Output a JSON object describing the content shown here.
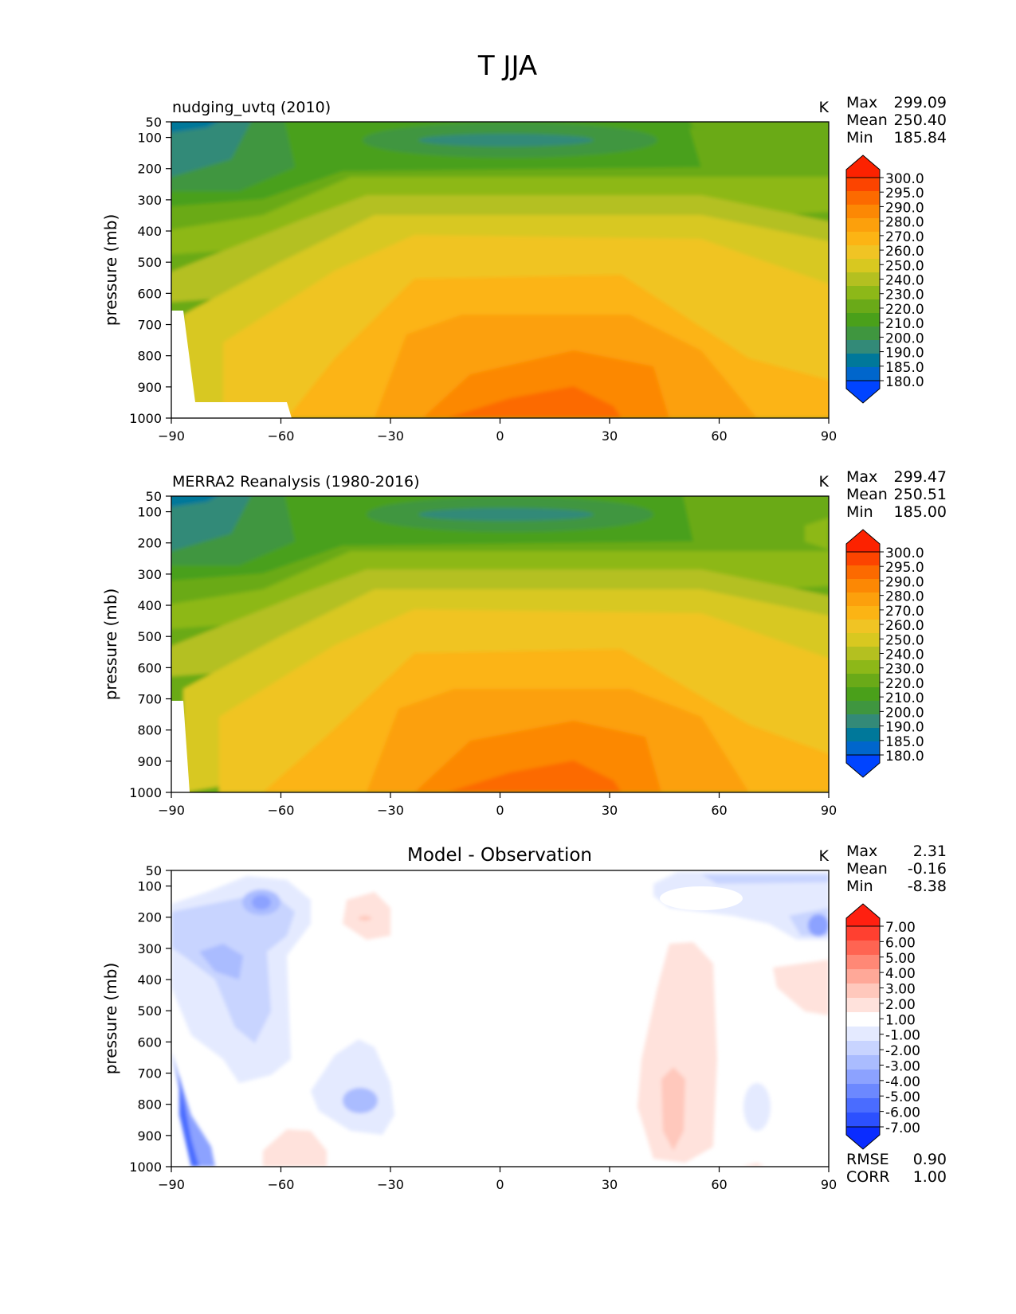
{
  "figure_title": "T JJA",
  "ylabel": "pressure (mb)",
  "x_ticks": [
    "−90",
    "−60",
    "−30",
    "0",
    "30",
    "60",
    "90"
  ],
  "y_ticks": [
    "50",
    "100",
    "200",
    "300",
    "400",
    "500",
    "600",
    "700",
    "800",
    "900",
    "1000"
  ],
  "stat_labels": {
    "max": "Max",
    "mean": "Mean",
    "min": "Min",
    "rmse": "RMSE",
    "corr": "CORR"
  },
  "colors": {
    "abs_levels": [
      "#0044ff",
      "#0066cc",
      "#00789a",
      "#338a78",
      "#3f963f",
      "#4aa01a",
      "#6aaa18",
      "#8db818",
      "#b4c020",
      "#d8c820",
      "#f0c424",
      "#fcb414",
      "#fca00c",
      "#fc8804",
      "#fc6a00",
      "#fc4400",
      "#fc2200"
    ],
    "diff_levels": [
      "#0a2cff",
      "#2c50ff",
      "#4a6cff",
      "#6c88ff",
      "#8ca2ff",
      "#aabcff",
      "#c8d4ff",
      "#e4eaff",
      "#ffffff",
      "#ffe2dc",
      "#ffc8bc",
      "#ffa898",
      "#ff8876",
      "#ff6452",
      "#ff4030",
      "#ff2010"
    ]
  },
  "chart_data": [
    {
      "type": "contourf",
      "panel_title": "nudging_uvtq (2010)",
      "units": "K",
      "stats": {
        "max": "299.09",
        "mean": "250.40",
        "min": "185.84"
      },
      "xlim": [
        -90,
        90
      ],
      "ylim": [
        1000,
        50
      ],
      "colorbar_labels": [
        "300.0",
        "295.0",
        "290.0",
        "280.0",
        "270.0",
        "260.0",
        "250.0",
        "240.0",
        "230.0",
        "220.0",
        "210.0",
        "200.0",
        "190.0",
        "185.0",
        "180.0"
      ],
      "levels": [
        180,
        185,
        190,
        200,
        210,
        220,
        230,
        240,
        250,
        260,
        270,
        280,
        290,
        295,
        300
      ]
    },
    {
      "type": "contourf",
      "panel_title": "MERRA2 Reanalysis (1980-2016)",
      "units": "K",
      "stats": {
        "max": "299.47",
        "mean": "250.51",
        "min": "185.00"
      },
      "xlim": [
        -90,
        90
      ],
      "ylim": [
        1000,
        50
      ],
      "colorbar_labels": [
        "300.0",
        "295.0",
        "290.0",
        "280.0",
        "270.0",
        "260.0",
        "250.0",
        "240.0",
        "230.0",
        "220.0",
        "210.0",
        "200.0",
        "190.0",
        "185.0",
        "180.0"
      ],
      "levels": [
        180,
        185,
        190,
        200,
        210,
        220,
        230,
        240,
        250,
        260,
        270,
        280,
        290,
        295,
        300
      ]
    },
    {
      "type": "contourf",
      "panel_title": "Model - Observation",
      "units": "K",
      "stats": {
        "max": "2.31",
        "mean": "-0.16",
        "min": "-8.38"
      },
      "extra_stats": {
        "rmse": "0.90",
        "corr": "1.00"
      },
      "xlim": [
        -90,
        90
      ],
      "ylim": [
        1000,
        50
      ],
      "colorbar_labels": [
        "7.00",
        "6.00",
        "5.00",
        "4.00",
        "3.00",
        "2.00",
        "1.00",
        "-1.00",
        "-2.00",
        "-3.00",
        "-4.00",
        "-5.00",
        "-6.00",
        "-7.00"
      ],
      "levels": [
        -7,
        -6,
        -5,
        -4,
        -3,
        -2,
        -1,
        1,
        2,
        3,
        4,
        5,
        6,
        7
      ]
    }
  ]
}
